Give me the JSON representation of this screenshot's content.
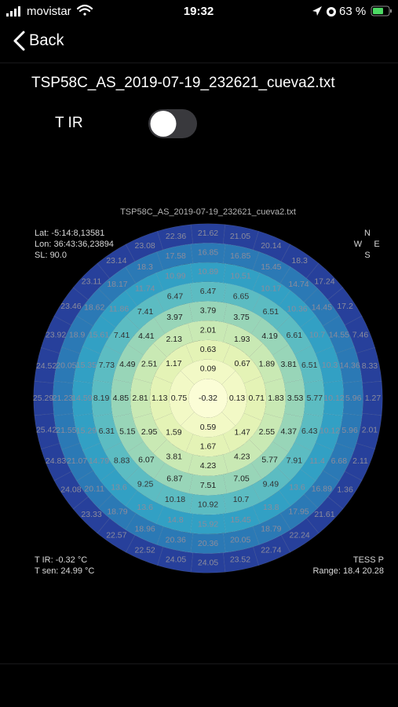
{
  "status_bar": {
    "carrier": "movistar",
    "time": "19:32",
    "battery": "63 %"
  },
  "nav": {
    "back": "Back"
  },
  "file_name": "TSP58C_AS_2019-07-19_232621_cueva2.txt",
  "toggle": {
    "label": "T IR",
    "on": false
  },
  "plot": {
    "title": "TSP58C_AS_2019-07-19_232621_cueva2.txt",
    "info": [
      "Lat: -5:14:8,13581",
      "Lon: 36:43:36,23894",
      "SL: 90.0"
    ],
    "compass": {
      "n": "N",
      "w": "W",
      "e": "E",
      "s": "S"
    },
    "center": -0.32,
    "rings": [
      [
        0.09,
        0.13,
        0.59,
        0.75
      ],
      [
        0.63,
        0.67,
        0.71,
        1.47,
        1.67,
        1.59,
        1.13,
        1.17
      ],
      [
        2.01,
        1.93,
        1.89,
        1.83,
        2.55,
        4.23,
        4.23,
        3.81,
        2.95,
        2.81,
        2.51,
        2.13
      ],
      [
        3.79,
        3.75,
        4.19,
        3.81,
        3.53,
        4.37,
        5.77,
        7.05,
        7.51,
        6.87,
        6.07,
        5.15,
        4.85,
        4.49,
        4.41,
        3.97
      ],
      [
        6.47,
        6.65,
        6.51,
        6.61,
        6.51,
        5.77,
        6.43,
        7.91,
        9.49,
        10.7,
        10.92,
        10.18,
        9.25,
        8.83,
        6.31,
        8.19,
        7.73,
        7.41,
        7.41,
        6.47
      ],
      [
        10.89,
        10.51,
        10.17,
        10.36,
        10.7,
        10.3,
        10.12,
        10.12,
        11.4,
        13.6,
        13.8,
        15.45,
        15.92,
        14.8,
        13.6,
        13.6,
        14.79,
        15.29,
        14.59,
        15.35,
        15.61,
        11.86,
        11.74,
        10.99
      ],
      [
        16.85,
        16.85,
        15.45,
        14.74,
        14.45,
        14.55,
        14.36,
        5.96,
        5.96,
        6.68,
        16.89,
        17.95,
        18.79,
        20.05,
        20.36,
        20.36,
        18.96,
        18.79,
        20.11,
        21.07,
        21.55,
        21.23,
        20.05,
        18.9,
        18.62,
        18.17,
        18.3,
        17.58
      ],
      [
        21.62,
        21.05,
        20.14,
        18.3,
        17.24,
        17.2,
        7.46,
        8.33,
        1.27,
        2.01,
        2.11,
        1.36,
        21.61,
        22.24,
        22.74,
        23.52,
        24.05,
        24.05,
        22.52,
        22.57,
        23.33,
        24.08,
        24.83,
        25.42,
        25.29,
        24.52,
        23.92,
        23.46,
        23.11,
        23.14,
        23.08,
        22.36
      ]
    ],
    "ring_colors": [
      "#fbfdd6",
      "#f2f9c6",
      "#e4f3b6",
      "#c9e9b4",
      "#98d5b8",
      "#5cbcc2",
      "#32a0c4",
      "#2b79b5",
      "#27409b"
    ],
    "footer_left": [
      "T IR: -0.32 °C",
      "T sen: 24.99 °C"
    ],
    "footer_right": [
      "TESS P",
      "Range: 18.4 20.28"
    ]
  }
}
